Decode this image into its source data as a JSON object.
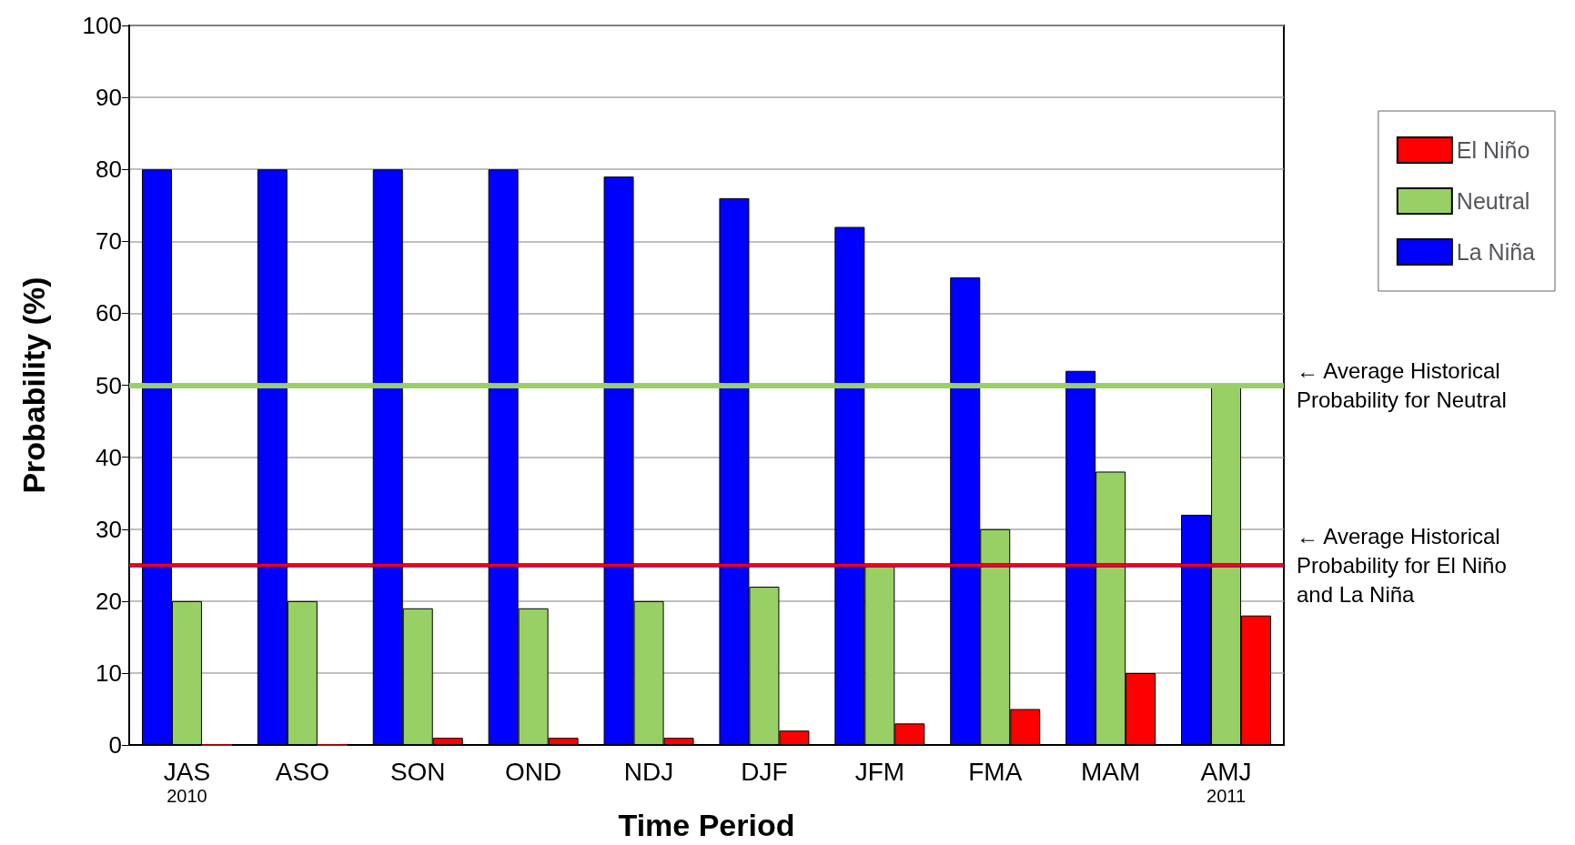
{
  "chart_data": {
    "type": "bar",
    "xlabel": "Time Period",
    "ylabel": "Probability (%)",
    "categories": [
      "JAS\n2010",
      "ASO",
      "SON",
      "OND",
      "NDJ",
      "DJF",
      "JFM",
      "FMA",
      "MAM",
      "AMJ\n2011"
    ],
    "series": [
      {
        "name": "La Niña",
        "color": "#0000ff",
        "values": [
          80,
          80,
          80,
          80,
          79,
          76,
          72,
          65,
          52,
          32
        ]
      },
      {
        "name": "Neutral",
        "color": "#99d066",
        "values": [
          20,
          20,
          19,
          19,
          20,
          22,
          25,
          30,
          38,
          50
        ]
      },
      {
        "name": "El Niño",
        "color": "#ff0000",
        "values": [
          0,
          0,
          1,
          1,
          1,
          2,
          3,
          5,
          10,
          18
        ]
      }
    ],
    "ylim": [
      0,
      100
    ],
    "yticks": [
      0,
      10,
      20,
      30,
      40,
      50,
      60,
      70,
      80,
      90,
      100
    ],
    "grid": "y",
    "legend": "right",
    "ref_lines": [
      {
        "axis": "y",
        "value": 50,
        "label": "← Average Historical\nProbability for Neutral",
        "color": "#99d066"
      },
      {
        "axis": "y",
        "value": 25,
        "label": null,
        "color": "#0000ff"
      },
      {
        "axis": "y",
        "value": 25,
        "label": "← Average Historical\nProbability for El Niño\nand La Niña",
        "color": "#ff0000"
      }
    ]
  }
}
